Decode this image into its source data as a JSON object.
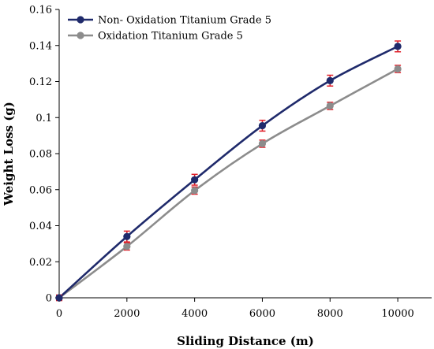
{
  "chart_data": {
    "type": "line",
    "title": "",
    "xlabel": "Sliding Distance (m)",
    "ylabel": "Weight Loss (g)",
    "xlim": [
      0,
      11000
    ],
    "ylim": [
      0,
      0.16
    ],
    "xticks": [
      0,
      2000,
      4000,
      6000,
      8000,
      10000
    ],
    "yticks": [
      0,
      0.02,
      0.04,
      0.06,
      0.08,
      0.1,
      0.12,
      0.14,
      0.16
    ],
    "xtick_labels": [
      "0",
      "2000",
      "4000",
      "6000",
      "8000",
      "10000"
    ],
    "ytick_labels": [
      "0",
      "0.02",
      "0.04",
      "0.06",
      "0.08",
      "0.1",
      "0.12",
      "0.14",
      "0.16"
    ],
    "grid": false,
    "legend_position": "top-left",
    "error_bar_color": "#e0202a",
    "series": [
      {
        "name": "Non- Oxidation Titanium Grade 5",
        "color": "#1f2a6b",
        "x": [
          0,
          2000,
          4000,
          6000,
          8000,
          10000
        ],
        "y": [
          0,
          0.034,
          0.0655,
          0.0955,
          0.1205,
          0.1395
        ],
        "error": [
          0.0015,
          0.003,
          0.003,
          0.003,
          0.003,
          0.003
        ]
      },
      {
        "name": "Oxidation Titanium Grade 5",
        "color": "#8c8c8c",
        "x": [
          0,
          2000,
          4000,
          6000,
          8000,
          10000
        ],
        "y": [
          0,
          0.0285,
          0.0595,
          0.0855,
          0.1065,
          0.127
        ],
        "error": [
          0.0015,
          0.002,
          0.002,
          0.002,
          0.002,
          0.002
        ]
      }
    ]
  }
}
